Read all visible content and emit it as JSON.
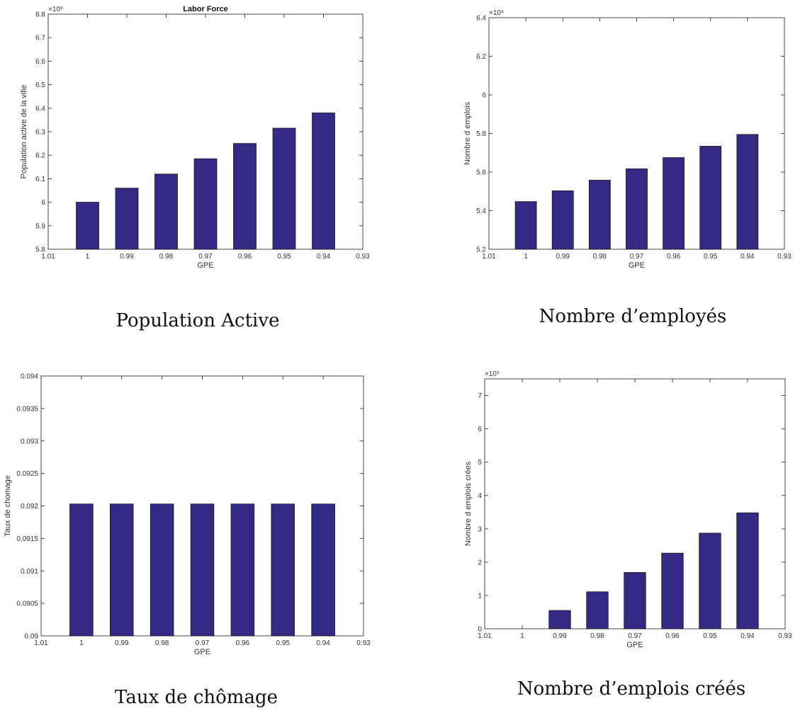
{
  "colors": {
    "bar_fill": "#322a85",
    "bar_stroke": "#1a1a1a",
    "axis": "#444444"
  },
  "chart_data": [
    {
      "type": "bar",
      "title": "Labor Force",
      "caption": "Population Active",
      "xlabel": "GPE",
      "ylabel": "Population active de la ville",
      "multiplier": "×10⁶",
      "x": [
        1,
        0.99,
        0.98,
        0.97,
        0.96,
        0.95,
        0.94
      ],
      "values": [
        6.0,
        6.06,
        6.12,
        6.185,
        6.25,
        6.315,
        6.38
      ],
      "xlim": [
        1.01,
        0.93
      ],
      "ylim": [
        5.8,
        6.8
      ],
      "xticks": [
        "1.01",
        "1",
        "0.99",
        "0.98",
        "0.97",
        "0.96",
        "0.95",
        "0.94",
        "0.93"
      ],
      "yticks": [
        "5.8",
        "5.9",
        "6",
        "6.1",
        "6.2",
        "6.3",
        "6.4",
        "6.5",
        "6.6",
        "6.7",
        "6.8"
      ],
      "grid": false,
      "legend": "none"
    },
    {
      "type": "bar",
      "title": "",
      "caption": "Nombre d’employés",
      "xlabel": "GPE",
      "ylabel": "Nombre d emplois",
      "multiplier": "×10⁶",
      "x": [
        1,
        0.99,
        0.98,
        0.97,
        0.96,
        0.95,
        0.94
      ],
      "values": [
        5.447,
        5.503,
        5.558,
        5.617,
        5.675,
        5.734,
        5.795
      ],
      "xlim": [
        1.01,
        0.93
      ],
      "ylim": [
        5.2,
        6.4
      ],
      "xticks": [
        "1.01",
        "1",
        "0.99",
        "0.98",
        "0.97",
        "0.96",
        "0.95",
        "0.94",
        "0.93"
      ],
      "yticks": [
        "5.2",
        "5.4",
        "5.6",
        "5.8",
        "6",
        "6.2",
        "6.4"
      ],
      "grid": false,
      "legend": "none"
    },
    {
      "type": "bar",
      "title": "",
      "caption": "Taux de chômage",
      "xlabel": "GPE",
      "ylabel": "Taux de chomage",
      "multiplier": "",
      "x": [
        1,
        0.99,
        0.98,
        0.97,
        0.96,
        0.95,
        0.94
      ],
      "values": [
        0.09203,
        0.09203,
        0.09203,
        0.09203,
        0.09203,
        0.09203,
        0.09203
      ],
      "xlim": [
        1.01,
        0.93
      ],
      "ylim": [
        0.09,
        0.094
      ],
      "xticks": [
        "1.01",
        "1",
        "0.99",
        "0.98",
        "0.97",
        "0.96",
        "0.95",
        "0.94",
        "0.93"
      ],
      "yticks": [
        "0.09",
        "0.0905",
        "0.091",
        "0.0915",
        "0.092",
        "0.0925",
        "0.093",
        "0.0935",
        "0.094"
      ],
      "grid": false,
      "legend": "none"
    },
    {
      "type": "bar",
      "title": "",
      "caption": "Nombre d’emplois créés",
      "xlabel": "GPE",
      "ylabel": "Nombre d emplois crées",
      "multiplier": "×10⁵",
      "x": [
        1,
        0.99,
        0.98,
        0.97,
        0.96,
        0.95,
        0.94
      ],
      "values": [
        0,
        0.55,
        1.11,
        1.69,
        2.27,
        2.87,
        3.48
      ],
      "xlim": [
        1.01,
        0.93
      ],
      "ylim": [
        0,
        7.5
      ],
      "xticks": [
        "1.01",
        "1",
        "0.99",
        "0.98",
        "0.97",
        "0.96",
        "0.95",
        "0.94",
        "0.93"
      ],
      "yticks": [
        "0",
        "1",
        "2",
        "3",
        "4",
        "5",
        "6",
        "7"
      ],
      "grid": false,
      "legend": "none"
    }
  ]
}
